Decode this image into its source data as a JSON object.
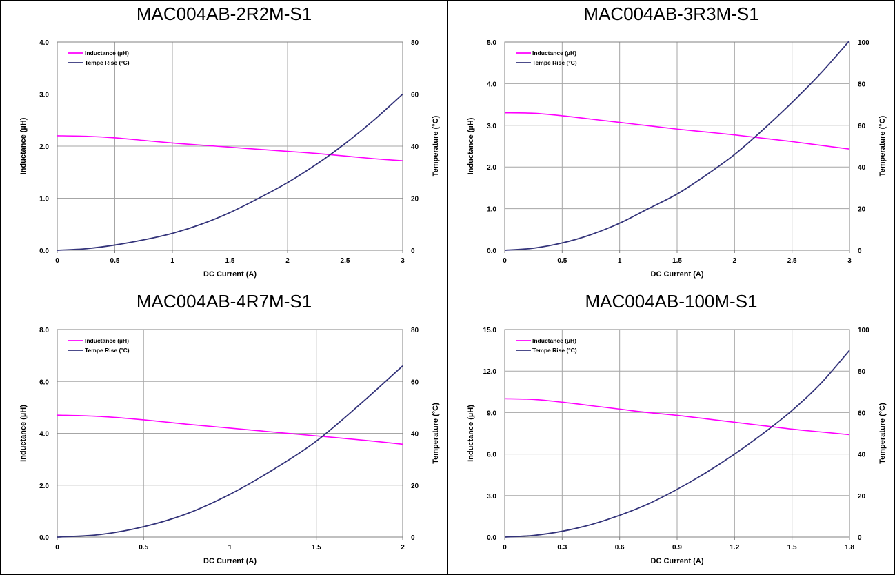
{
  "chart_data": [
    {
      "type": "line",
      "title": "MAC004AB-2R2M-S1",
      "xlabel": "DC Current (A)",
      "ylabel": "Inductance (µH)",
      "y2label": "Temperature (°C)",
      "xlim": [
        0,
        3
      ],
      "ylim": [
        0,
        4
      ],
      "y2lim": [
        0,
        80
      ],
      "xticks": [
        "0",
        "0.5",
        "1",
        "1.5",
        "2",
        "2.5",
        "3"
      ],
      "yticks": [
        "0.0",
        "1.0",
        "2.0",
        "3.0",
        "4.0"
      ],
      "y2ticks": [
        "0",
        "20",
        "40",
        "60",
        "80"
      ],
      "grid": true,
      "legend_position": "top-left",
      "series": [
        {
          "name": "Inductance (µH)",
          "axis": "left",
          "color": "#ff00ff",
          "x": [
            0,
            0.25,
            0.5,
            0.75,
            1,
            1.25,
            1.5,
            1.75,
            2,
            2.25,
            2.5,
            2.75,
            3
          ],
          "values": [
            2.2,
            2.19,
            2.16,
            2.11,
            2.06,
            2.02,
            1.98,
            1.94,
            1.9,
            1.86,
            1.81,
            1.76,
            1.72
          ]
        },
        {
          "name": "Tempe Rise (°C)",
          "axis": "right",
          "color": "#33337a",
          "x": [
            0,
            0.25,
            0.5,
            0.75,
            1,
            1.25,
            1.5,
            1.75,
            2,
            2.25,
            2.5,
            2.75,
            3
          ],
          "values": [
            0,
            0.6,
            2,
            4,
            6.5,
            10,
            14.5,
            20,
            26,
            33,
            41,
            50,
            60
          ]
        }
      ]
    },
    {
      "type": "line",
      "title": "MAC004AB-3R3M-S1",
      "xlabel": "DC Current (A)",
      "ylabel": "Inductance (µH)",
      "y2label": "Temperature (°C)",
      "xlim": [
        0,
        3
      ],
      "ylim": [
        0,
        5
      ],
      "y2lim": [
        0,
        100
      ],
      "xticks": [
        "0",
        "0.5",
        "1",
        "1.5",
        "2",
        "2.5",
        "3"
      ],
      "yticks": [
        "0.0",
        "1.0",
        "2.0",
        "3.0",
        "4.0",
        "5.0"
      ],
      "y2ticks": [
        "0",
        "20",
        "40",
        "60",
        "80",
        "100"
      ],
      "grid": true,
      "legend_position": "top-left",
      "series": [
        {
          "name": "Inductance (µH)",
          "axis": "left",
          "color": "#ff00ff",
          "x": [
            0,
            0.25,
            0.5,
            0.75,
            1,
            1.25,
            1.5,
            1.75,
            2,
            2.25,
            2.5,
            2.75,
            3
          ],
          "values": [
            3.3,
            3.29,
            3.23,
            3.15,
            3.07,
            2.99,
            2.91,
            2.84,
            2.77,
            2.69,
            2.61,
            2.52,
            2.43
          ]
        },
        {
          "name": "Tempe Rise (°C)",
          "axis": "right",
          "color": "#33337a",
          "x": [
            0,
            0.25,
            0.5,
            0.75,
            1,
            1.25,
            1.5,
            1.75,
            2,
            2.25,
            2.5,
            2.75,
            3
          ],
          "values": [
            0,
            1,
            3.5,
            7.5,
            13,
            20,
            27,
            36,
            46,
            58,
            71,
            85,
            101
          ]
        }
      ]
    },
    {
      "type": "line",
      "title": "MAC004AB-4R7M-S1",
      "xlabel": "DC Current (A)",
      "ylabel": "Inductance (µH)",
      "y2label": "Temperature (°C)",
      "xlim": [
        0,
        2
      ],
      "ylim": [
        0,
        8
      ],
      "y2lim": [
        0,
        80
      ],
      "xticks": [
        "0",
        "0.5",
        "1",
        "1.5",
        "2"
      ],
      "yticks": [
        "0.0",
        "2.0",
        "4.0",
        "6.0",
        "8.0"
      ],
      "y2ticks": [
        "0",
        "20",
        "40",
        "60",
        "80"
      ],
      "grid": true,
      "legend_position": "top-left",
      "series": [
        {
          "name": "Inductance (µH)",
          "axis": "left",
          "color": "#ff00ff",
          "x": [
            0,
            0.25,
            0.5,
            0.75,
            1,
            1.25,
            1.5,
            1.75,
            2
          ],
          "values": [
            4.7,
            4.65,
            4.52,
            4.35,
            4.2,
            4.05,
            3.9,
            3.75,
            3.58
          ]
        },
        {
          "name": "Tempe Rise (°C)",
          "axis": "right",
          "color": "#33337a",
          "x": [
            0,
            0.25,
            0.5,
            0.75,
            1,
            1.25,
            1.5,
            1.75,
            2
          ],
          "values": [
            0,
            1,
            4,
            9,
            16.5,
            26,
            37,
            51,
            66
          ]
        }
      ]
    },
    {
      "type": "line",
      "title": "MAC004AB-100M-S1",
      "xlabel": "DC Current (A)",
      "ylabel": "Inductance (µH)",
      "y2label": "Temperature (°C)",
      "xlim": [
        0,
        1.8
      ],
      "ylim": [
        0,
        15
      ],
      "y2lim": [
        0,
        100
      ],
      "xticks": [
        "0",
        "0.3",
        "0.6",
        "0.9",
        "1.2",
        "1.5",
        "1.8"
      ],
      "yticks": [
        "0.0",
        "3.0",
        "6.0",
        "9.0",
        "12.0",
        "15.0"
      ],
      "y2ticks": [
        "0",
        "20",
        "40",
        "60",
        "80",
        "100"
      ],
      "grid": true,
      "legend_position": "top-left",
      "series": [
        {
          "name": "Inductance (µH)",
          "axis": "left",
          "color": "#ff00ff",
          "x": [
            0,
            0.15,
            0.3,
            0.45,
            0.6,
            0.75,
            0.9,
            1.05,
            1.2,
            1.35,
            1.5,
            1.65,
            1.8
          ],
          "values": [
            10.0,
            9.95,
            9.75,
            9.5,
            9.25,
            9.0,
            8.8,
            8.55,
            8.3,
            8.05,
            7.8,
            7.6,
            7.4
          ]
        },
        {
          "name": "Tempe Rise (°C)",
          "axis": "right",
          "color": "#33337a",
          "x": [
            0,
            0.15,
            0.3,
            0.45,
            0.6,
            0.75,
            0.9,
            1.05,
            1.2,
            1.35,
            1.5,
            1.65,
            1.8
          ],
          "values": [
            0,
            0.8,
            2.8,
            6,
            10.5,
            16,
            23,
            31,
            40,
            50,
            61,
            74,
            90
          ]
        }
      ]
    }
  ]
}
